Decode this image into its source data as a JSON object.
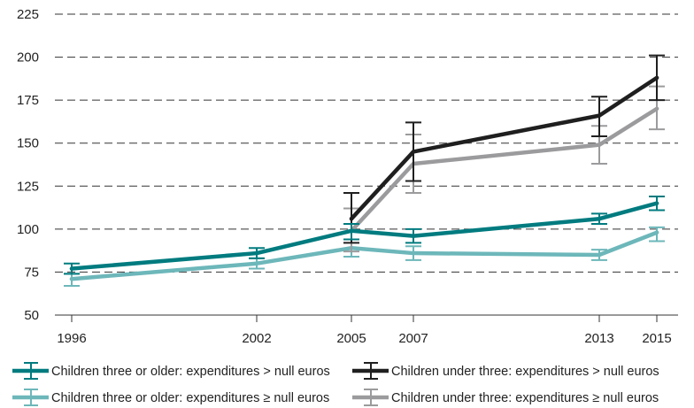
{
  "chart_data": {
    "type": "line",
    "title": "",
    "xlabel": "",
    "ylabel": "",
    "x": [
      1996,
      2002,
      2005,
      2007,
      2013,
      2015
    ],
    "x_tick_labels": [
      "1996",
      "2002",
      "2005",
      "2007",
      "2013",
      "2015"
    ],
    "ylim": [
      50,
      225
    ],
    "y_ticks": [
      50,
      75,
      100,
      125,
      150,
      175,
      200,
      225
    ],
    "grid": "horizontal dashed",
    "legend_position": "bottom",
    "series": [
      {
        "name": "Children three or older: expenditures > null euros",
        "color": "#007b7f",
        "x": [
          1996,
          2002,
          2005,
          2007,
          2013,
          2015
        ],
        "values": [
          77,
          86,
          99,
          96,
          106,
          115
        ],
        "error_low": [
          74,
          83,
          94,
          92,
          103,
          111
        ],
        "error_high": [
          80,
          89,
          103,
          100,
          109,
          119
        ]
      },
      {
        "name": "Children three or older: expenditures ≥ null euros",
        "color": "#6db7ba",
        "x": [
          1996,
          2002,
          2005,
          2007,
          2013,
          2015
        ],
        "values": [
          71,
          80,
          89,
          86,
          85,
          98
        ],
        "error_low": [
          67,
          77,
          84,
          82,
          82,
          93
        ],
        "error_high": [
          74,
          83,
          94,
          90,
          88,
          101
        ]
      },
      {
        "name": "Children under three: expenditures > null euros",
        "color": "#1f1f1f",
        "x": [
          2005,
          2007,
          2013,
          2015
        ],
        "values": [
          106,
          145,
          166,
          188
        ],
        "error_low": [
          92,
          128,
          154,
          175
        ],
        "error_high": [
          121,
          162,
          177,
          201
        ]
      },
      {
        "name": "Children under three: expenditures ≥ null euros",
        "color": "#9b9b9d",
        "x": [
          2005,
          2007,
          2013,
          2015
        ],
        "values": [
          99,
          138,
          149,
          170
        ],
        "error_low": [
          87,
          121,
          138,
          158
        ],
        "error_high": [
          112,
          155,
          160,
          183
        ]
      }
    ]
  }
}
